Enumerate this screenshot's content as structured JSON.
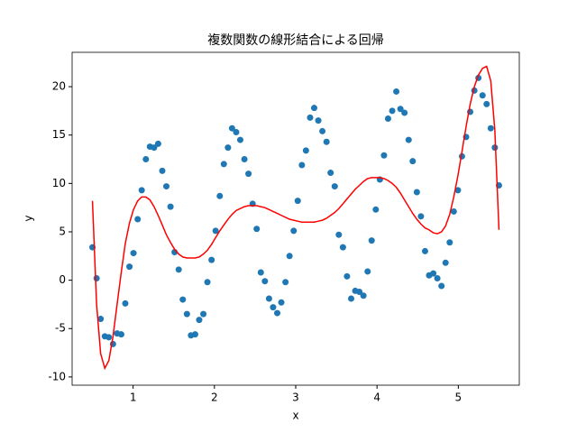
{
  "chart_data": {
    "type": "scatter",
    "title": "複数関数の線形結合による回帰",
    "x_label": "x",
    "y_label": "y",
    "x": [
      0.5,
      0.551,
      0.601,
      0.652,
      0.702,
      0.753,
      0.803,
      0.854,
      0.904,
      0.955,
      1.005,
      1.056,
      1.106,
      1.157,
      1.207,
      1.258,
      1.308,
      1.359,
      1.409,
      1.46,
      1.51,
      1.561,
      1.611,
      1.662,
      1.712,
      1.763,
      1.813,
      1.864,
      1.914,
      1.965,
      2.015,
      2.066,
      2.116,
      2.167,
      2.217,
      2.268,
      2.318,
      2.369,
      2.419,
      2.47,
      2.52,
      2.571,
      2.621,
      2.672,
      2.722,
      2.773,
      2.823,
      2.874,
      2.924,
      2.975,
      3.025,
      3.076,
      3.126,
      3.177,
      3.227,
      3.278,
      3.328,
      3.379,
      3.429,
      3.48,
      3.53,
      3.581,
      3.631,
      3.682,
      3.732,
      3.783,
      3.833,
      3.884,
      3.934,
      3.985,
      4.035,
      4.086,
      4.136,
      4.187,
      4.237,
      4.288,
      4.338,
      4.389,
      4.439,
      4.49,
      4.54,
      4.591,
      4.641,
      4.692,
      4.742,
      4.793,
      4.843,
      4.894,
      4.944,
      4.995,
      5.045,
      5.096,
      5.146,
      5.197,
      5.247,
      5.298,
      5.348,
      5.399,
      5.449,
      5.5
    ],
    "series": [
      {
        "type": "scatter",
        "color": "#1f77b4",
        "values": [
          3.4,
          0.2,
          -4.0,
          -5.8,
          -5.9,
          -6.6,
          -5.5,
          -5.6,
          -2.4,
          1.4,
          2.8,
          6.3,
          9.3,
          12.5,
          13.8,
          13.7,
          14.1,
          11.3,
          9.7,
          7.6,
          2.9,
          1.1,
          -2.0,
          -3.5,
          -5.7,
          -5.6,
          -4.1,
          -3.5,
          -0.2,
          2.1,
          5.1,
          8.7,
          12.0,
          13.7,
          15.7,
          15.3,
          14.5,
          12.5,
          11.0,
          7.9,
          5.3,
          0.8,
          -0.1,
          -1.9,
          -2.8,
          -3.4,
          -2.3,
          -0.2,
          2.5,
          5.1,
          8.2,
          11.9,
          13.4,
          16.8,
          17.8,
          16.5,
          15.4,
          14.3,
          11.1,
          9.7,
          4.7,
          3.4,
          0.4,
          -1.9,
          -1.1,
          -1.2,
          -1.6,
          0.9,
          4.1,
          7.3,
          10.4,
          12.9,
          16.7,
          17.5,
          19.5,
          17.7,
          17.3,
          14.5,
          12.3,
          9.1,
          6.6,
          3.0,
          0.5,
          0.7,
          0.2,
          -0.6,
          1.8,
          3.9,
          7.1,
          9.3,
          12.8,
          14.8,
          17.4,
          19.6,
          20.9,
          19.1,
          18.2,
          15.7,
          13.7,
          9.8
        ]
      },
      {
        "type": "line",
        "color": "#ff0000",
        "values": [
          8.2,
          -2.5,
          -7.6,
          -9.1,
          -8.3,
          -5.8,
          -2.5,
          0.8,
          3.8,
          5.9,
          7.3,
          8.2,
          8.6,
          8.6,
          8.3,
          7.6,
          6.7,
          5.7,
          4.7,
          3.9,
          3.2,
          2.7,
          2.4,
          2.3,
          2.3,
          2.3,
          2.4,
          2.7,
          3.1,
          3.7,
          4.4,
          5.1,
          5.7,
          6.3,
          6.8,
          7.2,
          7.4,
          7.6,
          7.7,
          7.7,
          7.7,
          7.6,
          7.5,
          7.3,
          7.1,
          6.9,
          6.7,
          6.5,
          6.3,
          6.2,
          6.1,
          6.0,
          6.0,
          6.0,
          6.0,
          6.1,
          6.2,
          6.4,
          6.7,
          7.0,
          7.4,
          7.9,
          8.4,
          8.9,
          9.4,
          9.8,
          10.2,
          10.5,
          10.6,
          10.6,
          10.6,
          10.5,
          10.3,
          10.0,
          9.6,
          9.0,
          8.3,
          7.6,
          6.9,
          6.3,
          5.8,
          5.4,
          5.2,
          4.9,
          4.8,
          5.0,
          5.6,
          6.8,
          8.6,
          10.8,
          13.3,
          15.9,
          18.2,
          20.0,
          21.2,
          21.9,
          22.1,
          20.6,
          15.5,
          5.2
        ]
      }
    ],
    "xlim": [
      0.25,
      5.75
    ],
    "ylim": [
      -10.85,
      23.55
    ],
    "xticks": [
      1,
      2,
      3,
      4,
      5
    ],
    "yticks": [
      -10,
      -5,
      0,
      5,
      10,
      15,
      20
    ],
    "grid": false
  }
}
